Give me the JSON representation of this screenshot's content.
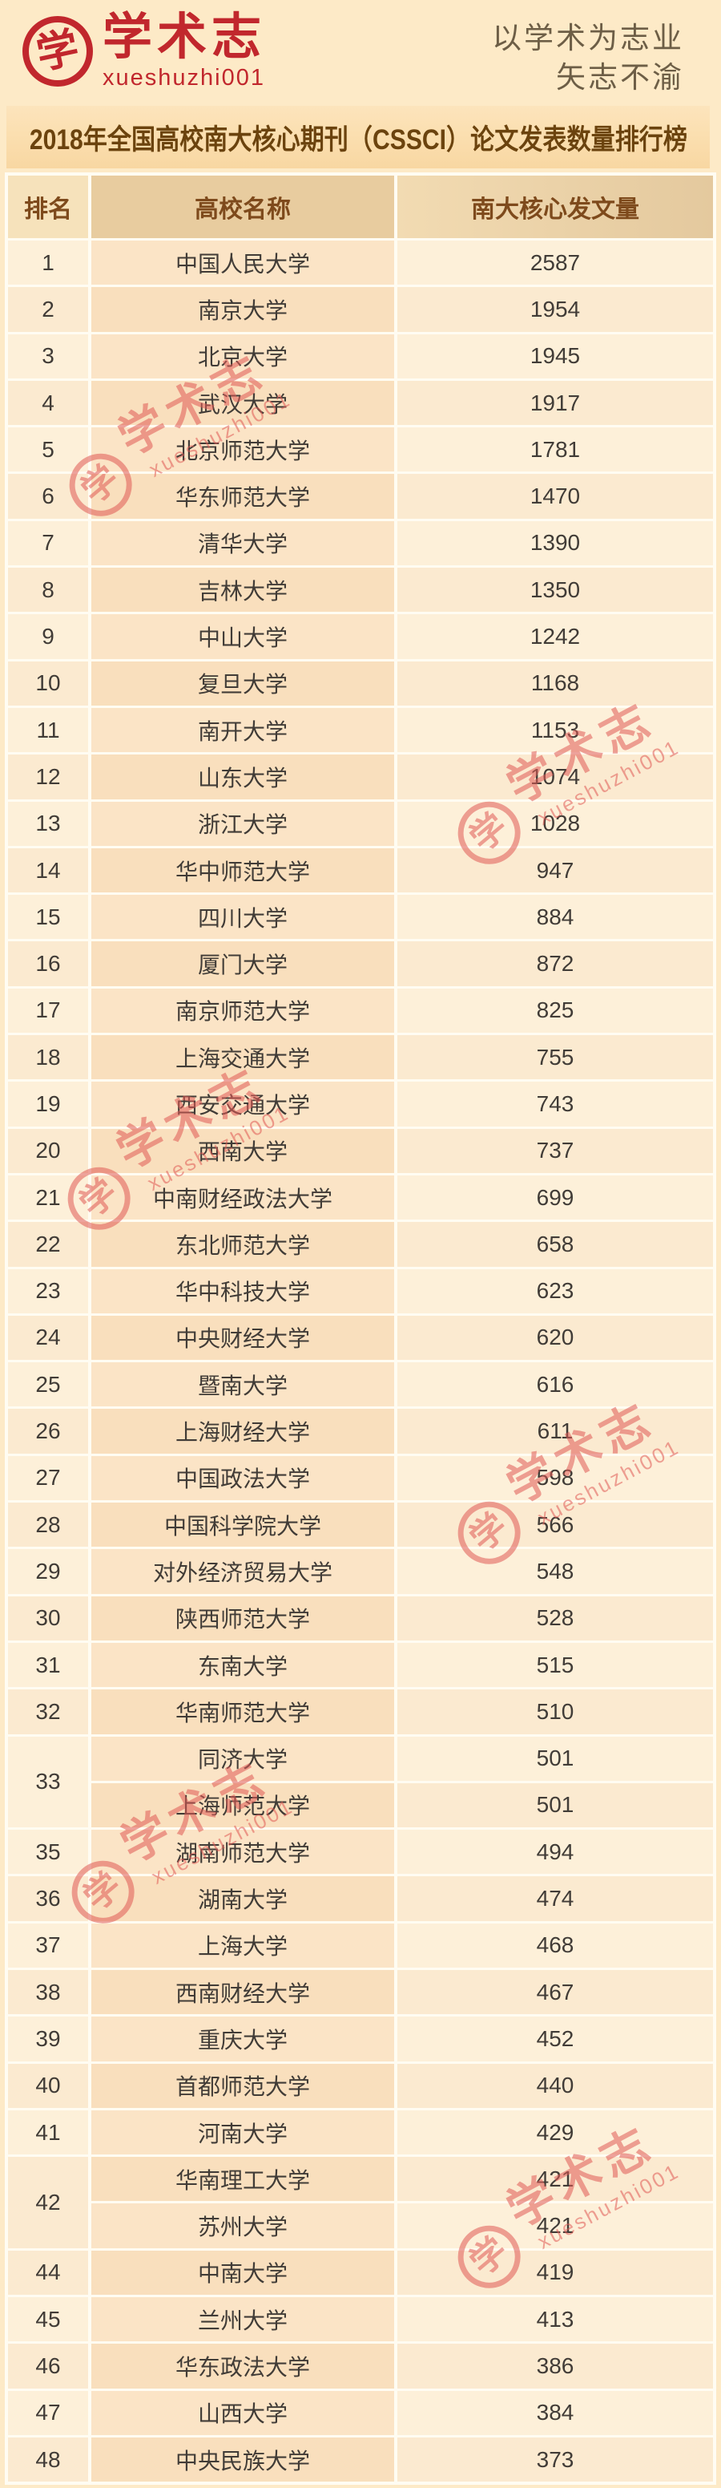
{
  "brand": {
    "logo_char": "学",
    "logo_text": "学术志",
    "logo_handle": "xueshuzhi001",
    "slogan_line1": "以学术为志业",
    "slogan_line2": "矢志不渝"
  },
  "title": "2018年全国高校南大核心期刊（CSSCI）论文发表数量排行榜",
  "watermark": {
    "char": "学",
    "text": "学术志",
    "handle": "xueshuzhi001"
  },
  "colors": {
    "brand_red": "#c1272d",
    "watermark_red": "#e05a55",
    "page_bg": "#fdeac7",
    "title_band_bg": "#fbdfb0",
    "title_text": "#6b430e",
    "header_text": "#7e4a1c",
    "header_name_bg": "#e8cc9f",
    "row_name_bg": "#fbe4c6",
    "row_light_bg": "#fdf0d9",
    "cell_text": "#413c37"
  },
  "chart_data": {
    "type": "table",
    "title": "2018年全国高校南大核心期刊（CSSCI）论文发表数量排行榜",
    "columns": [
      "排名",
      "高校名称",
      "南大核心发文量"
    ],
    "rows": [
      [
        1,
        "中国人民大学",
        2587
      ],
      [
        2,
        "南京大学",
        1954
      ],
      [
        3,
        "北京大学",
        1945
      ],
      [
        4,
        "武汉大学",
        1917
      ],
      [
        5,
        "北京师范大学",
        1781
      ],
      [
        6,
        "华东师范大学",
        1470
      ],
      [
        7,
        "清华大学",
        1390
      ],
      [
        8,
        "吉林大学",
        1350
      ],
      [
        9,
        "中山大学",
        1242
      ],
      [
        10,
        "复旦大学",
        1168
      ],
      [
        11,
        "南开大学",
        1153
      ],
      [
        12,
        "山东大学",
        1074
      ],
      [
        13,
        "浙江大学",
        1028
      ],
      [
        14,
        "华中师范大学",
        947
      ],
      [
        15,
        "四川大学",
        884
      ],
      [
        16,
        "厦门大学",
        872
      ],
      [
        17,
        "南京师范大学",
        825
      ],
      [
        18,
        "上海交通大学",
        755
      ],
      [
        19,
        "西安交通大学",
        743
      ],
      [
        20,
        "西南大学",
        737
      ],
      [
        21,
        "中南财经政法大学",
        699
      ],
      [
        22,
        "东北师范大学",
        658
      ],
      [
        23,
        "华中科技大学",
        623
      ],
      [
        24,
        "中央财经大学",
        620
      ],
      [
        25,
        "暨南大学",
        616
      ],
      [
        26,
        "上海财经大学",
        611
      ],
      [
        27,
        "中国政法大学",
        598
      ],
      [
        28,
        "中国科学院大学",
        566
      ],
      [
        29,
        "对外经济贸易大学",
        548
      ],
      [
        30,
        "陕西师范大学",
        528
      ],
      [
        31,
        "东南大学",
        515
      ],
      [
        32,
        "华南师范大学",
        510
      ],
      [
        33,
        "同济大学",
        501
      ],
      [
        33,
        "上海师范大学",
        501
      ],
      [
        35,
        "湖南师范大学",
        494
      ],
      [
        36,
        "湖南大学",
        474
      ],
      [
        37,
        "上海大学",
        468
      ],
      [
        38,
        "西南财经大学",
        467
      ],
      [
        39,
        "重庆大学",
        452
      ],
      [
        40,
        "首都师范大学",
        440
      ],
      [
        41,
        "河南大学",
        429
      ],
      [
        42,
        "华南理工大学",
        421
      ],
      [
        42,
        "苏州大学",
        421
      ],
      [
        44,
        "中南大学",
        419
      ],
      [
        45,
        "兰州大学",
        413
      ],
      [
        46,
        "华东政法大学",
        386
      ],
      [
        47,
        "山西大学",
        384
      ],
      [
        48,
        "中央民族大学",
        373
      ]
    ]
  }
}
